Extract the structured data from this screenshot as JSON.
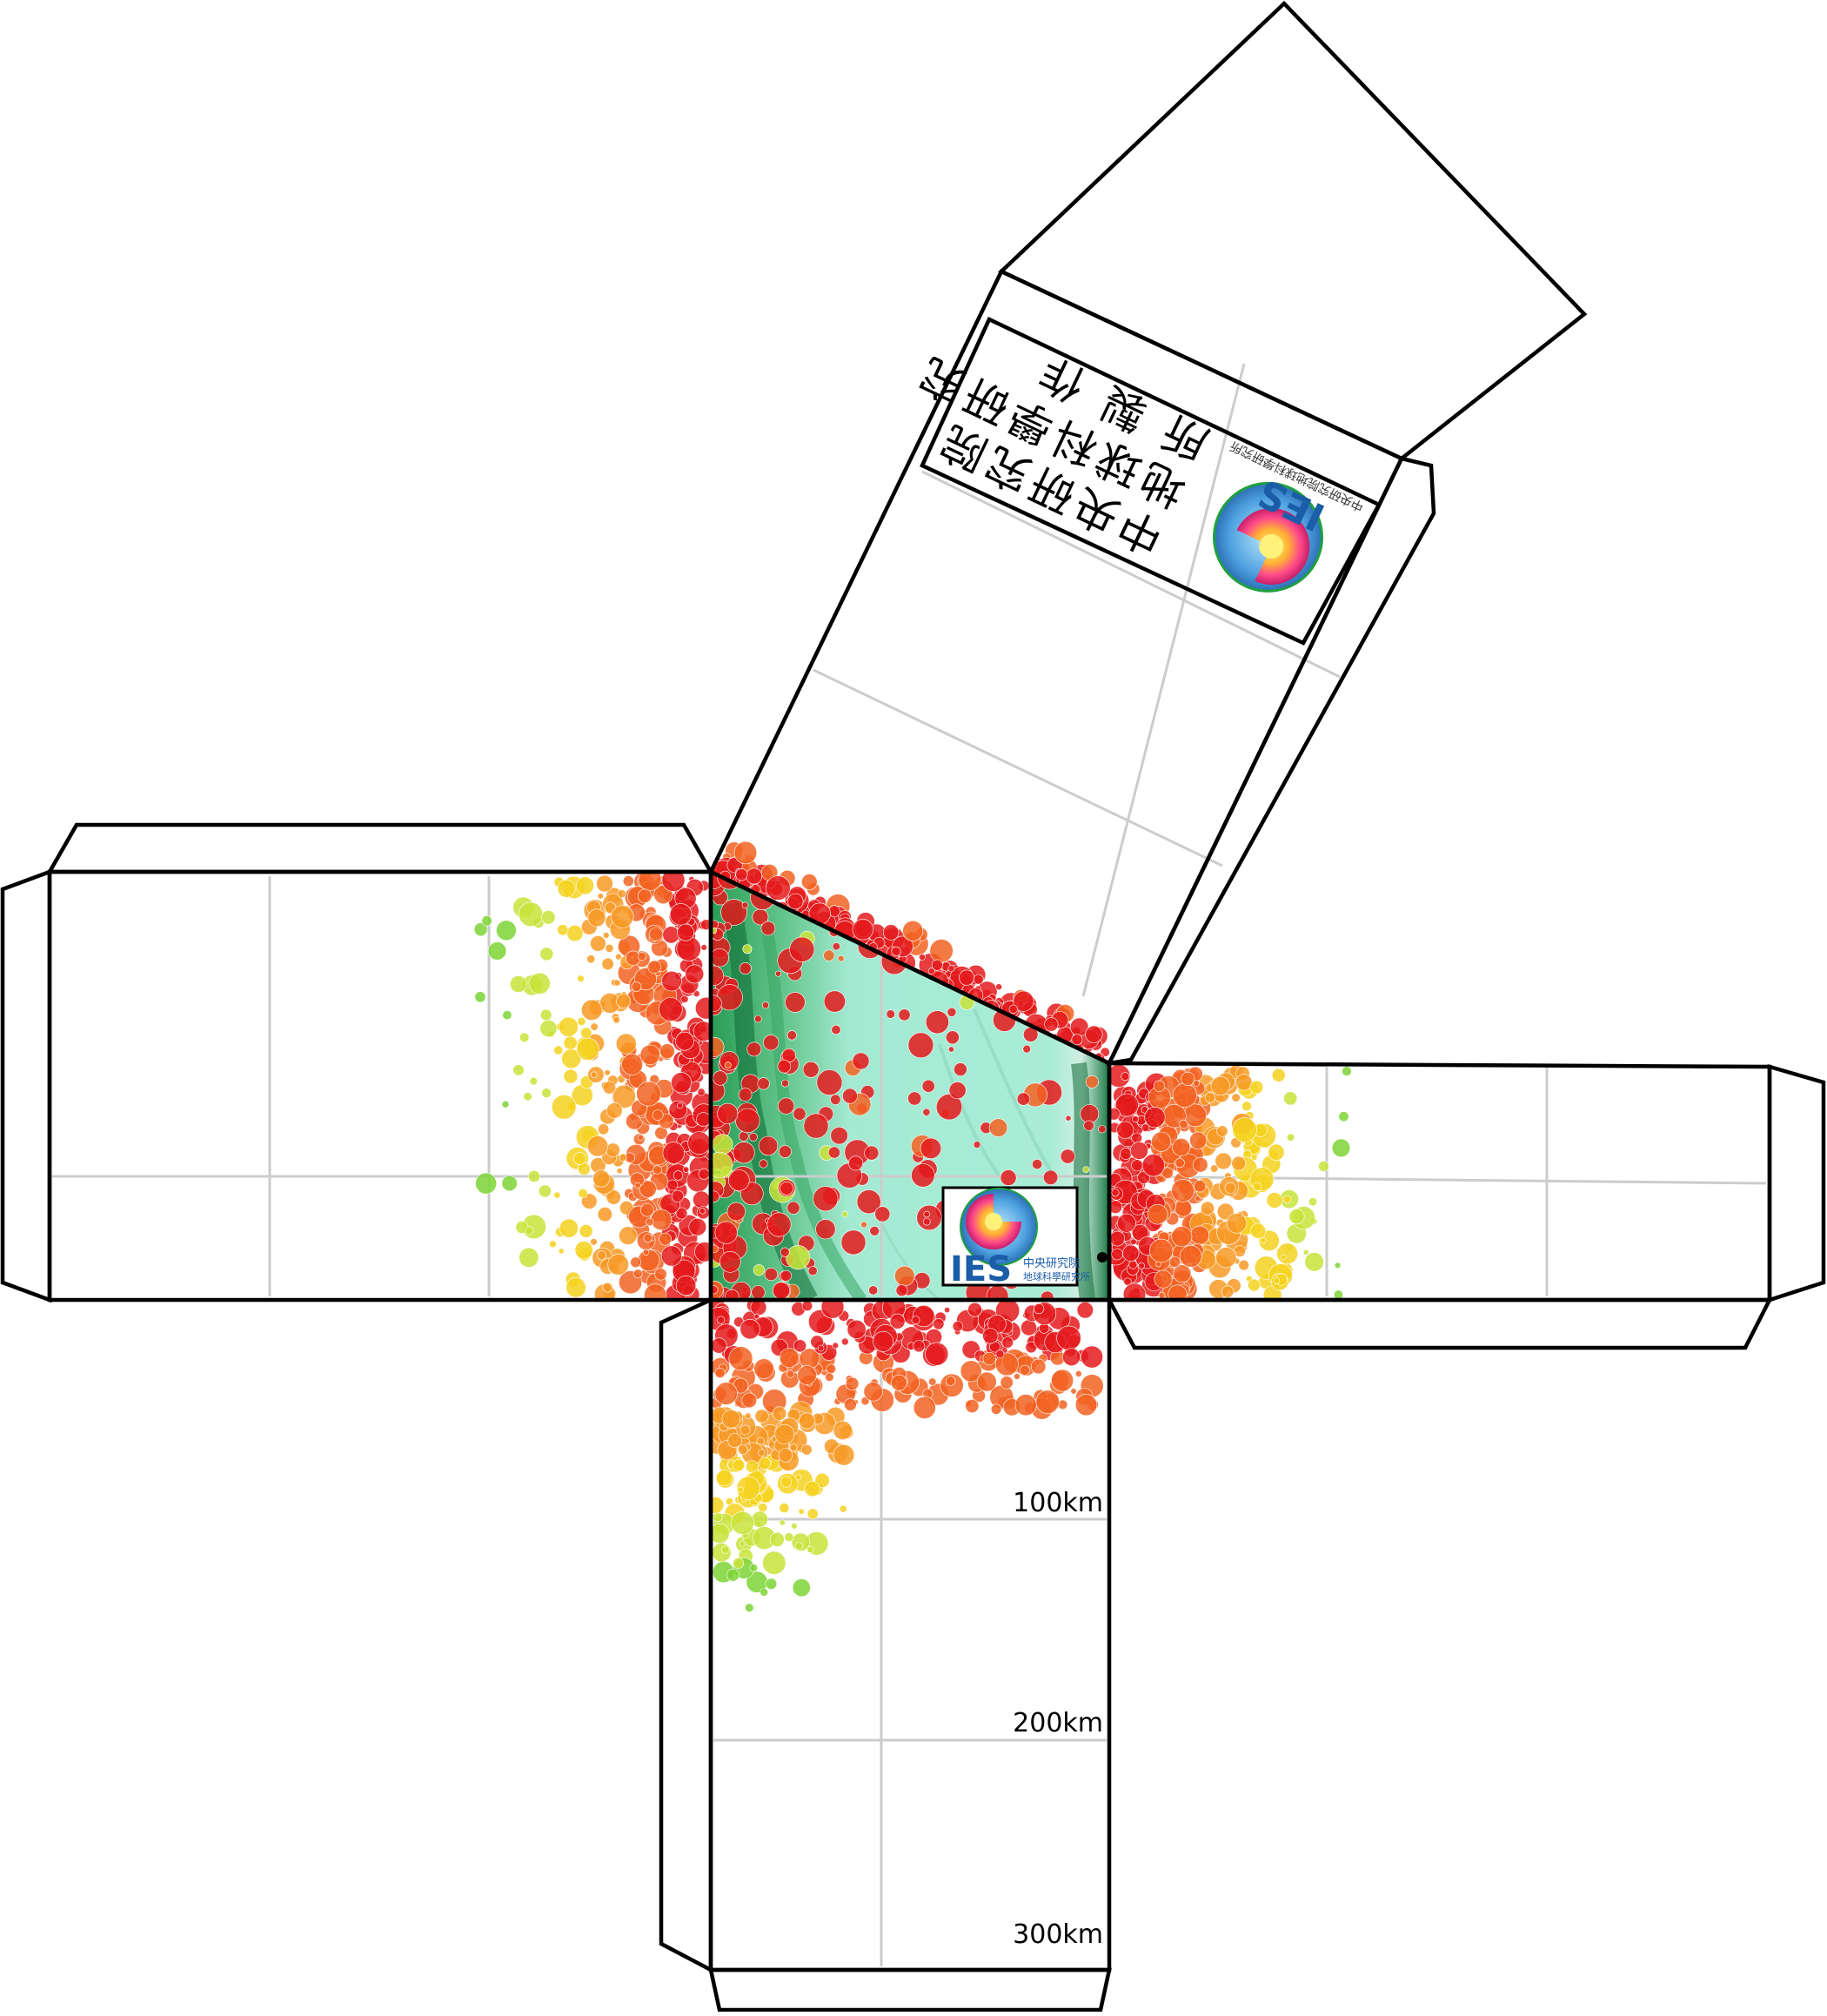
{
  "logo_panel": {
    "lines": [
      "中央研究院",
      "地球科學研究",
      "所 製 作"
    ],
    "logo_letters": "IES",
    "logo_subtitle": "中央研究院地球科學研究所"
  },
  "center_logo": {
    "logo_letters": "IES",
    "logo_line1": "中央研究院",
    "logo_line2": "地球科學研究所"
  },
  "depth_labels": [
    "100km",
    "200km",
    "300km"
  ],
  "colors": {
    "line": "#000000",
    "grid": "#cccccc",
    "terrain": "#a8ecd6",
    "terrain_dark": "#1f8a4a",
    "shallow": "#ee1b1b",
    "mid": "#f47a20",
    "mid2": "#f5d51a",
    "deep": "#86cf2a",
    "deeper": "#6fd7e8",
    "deepest": "#3366cc"
  },
  "depth_color_scale": [
    "#e41a1c",
    "#f26322",
    "#f79a26",
    "#f4d21e",
    "#c8e33a",
    "#7dd535",
    "#8de8e0",
    "#4ab7e8",
    "#2a4bd0",
    "#b040d0"
  ]
}
